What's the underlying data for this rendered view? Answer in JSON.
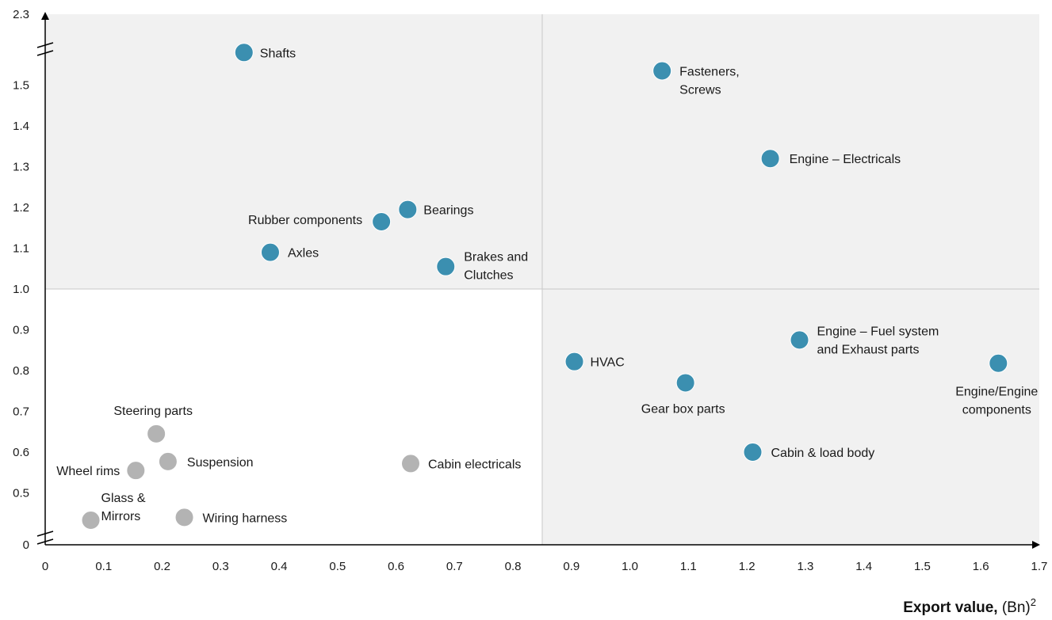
{
  "chart_data": {
    "type": "scatter",
    "title": "",
    "xlabel_bold": "Export value,",
    "xlabel_rest": " (Bn)",
    "xlabel_sup": "2",
    "ylabel": "",
    "xlim": [
      0,
      1.7
    ],
    "ylim": [
      0.4,
      1.6
    ],
    "y_top_label": "2.3",
    "y_bottom_label": "0",
    "axis_breaks": true,
    "x_ticks": [
      "0",
      "0.1",
      "0.2",
      "0.3",
      "0.4",
      "0.5",
      "0.6",
      "0.7",
      "0.8",
      "0.9",
      "1.0",
      "1.1",
      "1.2",
      "1.3",
      "1.4",
      "1.5",
      "1.6",
      "1.7"
    ],
    "y_ticks": [
      "0.5",
      "0.6",
      "0.7",
      "0.8",
      "0.9",
      "1.0",
      "1.1",
      "1.2",
      "1.3",
      "1.4",
      "1.5"
    ],
    "quadrant_dividers": {
      "x": 0.85,
      "y": 1.0
    },
    "colors": {
      "highlighted": "#3b8fb0",
      "muted": "#b3b3b3",
      "quadrant_fill": "#f1f1f1",
      "divider": "#c8c8c8",
      "axis": "#000000"
    },
    "points": [
      {
        "label": [
          "Shafts"
        ],
        "x": 0.34,
        "y": 1.58,
        "group": "highlighted"
      },
      {
        "label": [
          "Fasteners,",
          "Screws"
        ],
        "x": 1.055,
        "y": 1.535,
        "group": "highlighted"
      },
      {
        "label": [
          "Engine – Electricals"
        ],
        "x": 1.24,
        "y": 1.32,
        "group": "highlighted"
      },
      {
        "label": [
          "Bearings"
        ],
        "x": 0.62,
        "y": 1.195,
        "group": "highlighted"
      },
      {
        "label": [
          "Rubber components"
        ],
        "x": 0.575,
        "y": 1.165,
        "group": "highlighted"
      },
      {
        "label": [
          "Axles"
        ],
        "x": 0.385,
        "y": 1.09,
        "group": "highlighted"
      },
      {
        "label": [
          "Brakes and",
          "Clutches"
        ],
        "x": 0.685,
        "y": 1.055,
        "group": "highlighted"
      },
      {
        "label": [
          "Engine – Fuel system",
          "and Exhaust parts"
        ],
        "x": 1.29,
        "y": 0.875,
        "group": "highlighted"
      },
      {
        "label": [
          "HVAC"
        ],
        "x": 0.905,
        "y": 0.822,
        "group": "highlighted"
      },
      {
        "label": [
          "Engine/Engine",
          "components"
        ],
        "x": 1.63,
        "y": 0.818,
        "group": "highlighted"
      },
      {
        "label": [
          "Gear box parts"
        ],
        "x": 1.095,
        "y": 0.77,
        "group": "highlighted"
      },
      {
        "label": [
          "Cabin & load body"
        ],
        "x": 1.21,
        "y": 0.6,
        "group": "highlighted"
      },
      {
        "label": [
          "Steering parts"
        ],
        "x": 0.19,
        "y": 0.645,
        "group": "muted"
      },
      {
        "label": [
          "Suspension"
        ],
        "x": 0.21,
        "y": 0.577,
        "group": "muted"
      },
      {
        "label": [
          "Wheel rims"
        ],
        "x": 0.155,
        "y": 0.555,
        "group": "muted"
      },
      {
        "label": [
          "Cabin electricals"
        ],
        "x": 0.625,
        "y": 0.572,
        "group": "muted"
      },
      {
        "label": [
          "Glass &",
          "Mirrors"
        ],
        "x": 0.078,
        "y": 0.433,
        "group": "muted"
      },
      {
        "label": [
          "Wiring harness"
        ],
        "x": 0.238,
        "y": 0.44,
        "group": "muted"
      }
    ]
  }
}
